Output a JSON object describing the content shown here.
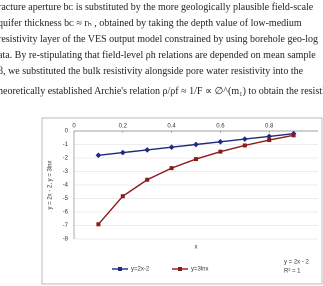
{
  "text_lines": [
    "racture aperture  bᴄ  is substituted by the more geologically plausible field-scale",
    "quifer thickness  bᴄ ≈ rₕ , obtained by taking the depth value of low-medium",
    "resistivity layer of the VES output model constrained by using borehole geo-log",
    "ata. By re-stipulating that field-level ρh relations are depended on mean sample",
    "β, we substituted the bulk resistivity alongside pore water resistivity into the",
    "heoretically established Archie's relation  ρ/ρf ≈ 1/F ∝ ∅^(m₁)  to obtain the resistive"
  ],
  "chart_data": {
    "type": "line",
    "x_label": "x",
    "y_label": "y = 2x - 2, y = 3lnx",
    "x": [
      0.1,
      0.2,
      0.3,
      0.4,
      0.5,
      0.6,
      0.7,
      0.8,
      0.9
    ],
    "series": [
      {
        "name": "y=2x-2",
        "color": "#1f2a80",
        "values": [
          -1.8,
          -1.6,
          -1.4,
          -1.2,
          -1.0,
          -0.8,
          -0.6,
          -0.4,
          -0.2
        ]
      },
      {
        "name": "y=3lnx",
        "color": "#8b1a1a",
        "values": [
          -6.91,
          -4.83,
          -3.61,
          -2.75,
          -2.08,
          -1.53,
          -1.07,
          -0.67,
          -0.32
        ]
      }
    ],
    "xlim": [
      0,
      1
    ],
    "xticks": [
      0,
      0.2,
      0.4,
      0.6,
      0.8
    ],
    "ylim": [
      -8,
      0
    ],
    "yticks": [
      -8,
      -7,
      -6,
      -5,
      -4,
      -3,
      -2,
      -1,
      0
    ],
    "grid": true,
    "legend": "bottom",
    "trendline_label": [
      "y = 2x - 2",
      "R² = 1"
    ]
  }
}
